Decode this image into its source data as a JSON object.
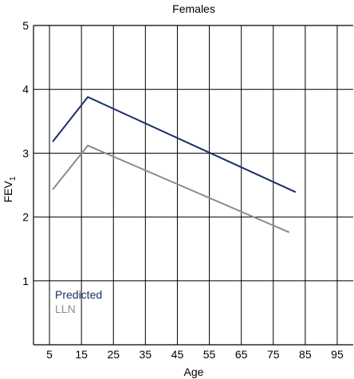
{
  "chart_data": {
    "type": "line",
    "title": "Females",
    "xlabel": "Age",
    "ylabel": "FEV",
    "ylabel_subscript": "1",
    "xlim": [
      0,
      100
    ],
    "ylim": [
      0,
      5
    ],
    "x_ticks": [
      5,
      15,
      25,
      35,
      45,
      55,
      65,
      75,
      85,
      95
    ],
    "y_ticks": [
      1,
      2,
      3,
      4,
      5
    ],
    "grid": true,
    "legend_position": "bottom-left",
    "series": [
      {
        "name": "Predicted",
        "color": "#1a2f66",
        "x": [
          6,
          17,
          82
        ],
        "y": [
          3.18,
          3.88,
          2.39
        ]
      },
      {
        "name": "LLN",
        "color": "#8c8c8c",
        "x": [
          6,
          17,
          80
        ],
        "y": [
          2.43,
          3.12,
          1.76
        ]
      }
    ]
  }
}
